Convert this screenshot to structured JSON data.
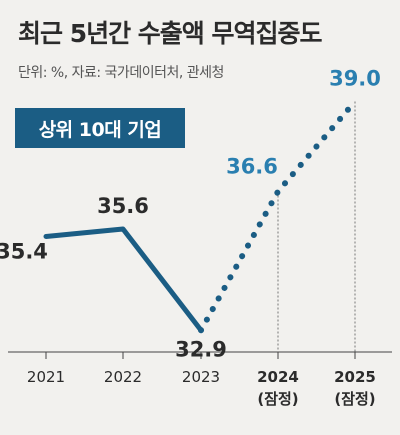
{
  "title": "최근 5년간 수출액 무역집중도",
  "unit_source": "단위: %, 자료: 국가데이터처, 관세청",
  "badge": "상위 10대 기업",
  "colors": {
    "background": "#f2f1ee",
    "series": "#1b5d84",
    "projected_label": "#2a7fb0",
    "text": "#2b2b2b",
    "axis": "#444444",
    "guide": "#777777"
  },
  "chart_data": {
    "type": "line",
    "x": [
      "2021",
      "2022",
      "2023",
      "2024",
      "2025"
    ],
    "x_tick_sublabels": [
      "",
      "",
      "",
      "(잠정)",
      "(잠정)"
    ],
    "series": [
      {
        "values": [
          35.4,
          35.6,
          32.9,
          36.6,
          39.0
        ],
        "value_labels": [
          "35.4",
          "35.6",
          "32.9",
          "36.6",
          "39.0"
        ],
        "solid_through_index": 2,
        "dotted_from_index": 2
      }
    ],
    "title": "최근 5년간 수출액 무역집중도",
    "xlabel": "",
    "ylabel": "",
    "ylim": [
      32.0,
      40.0
    ],
    "grid": false,
    "legend": "none"
  }
}
